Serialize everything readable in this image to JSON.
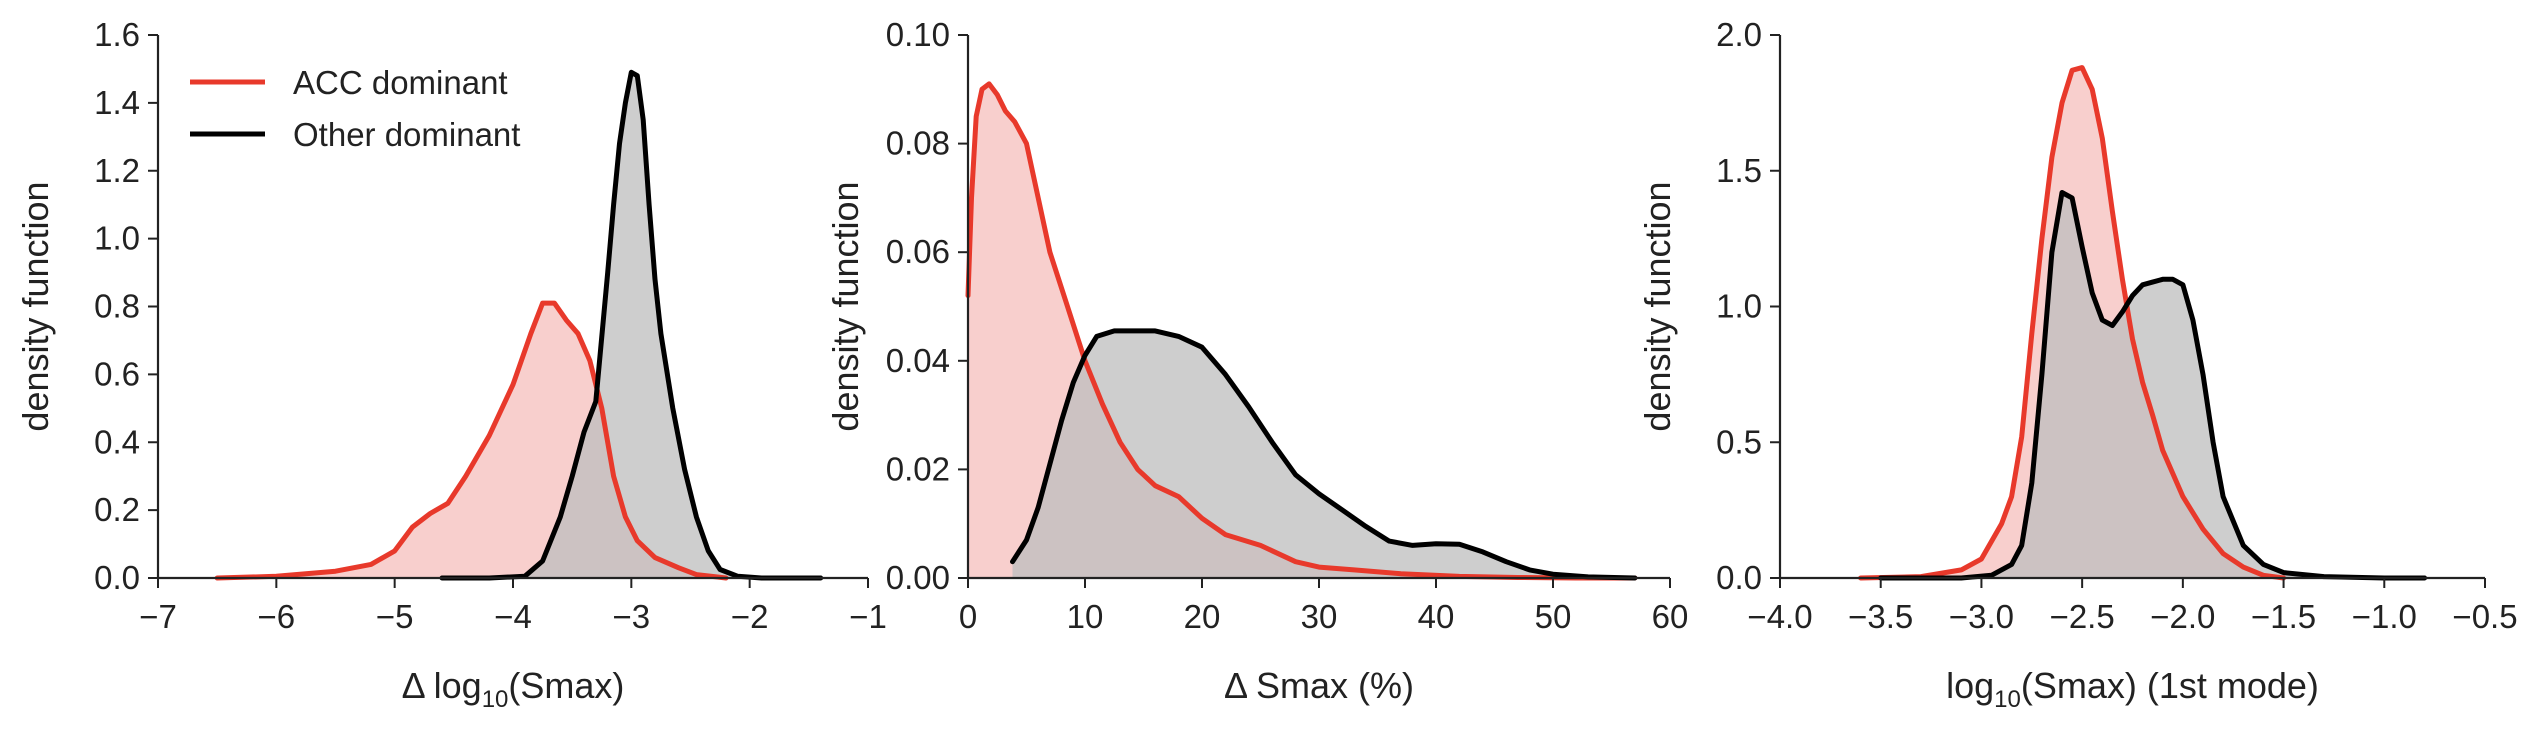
{
  "colors": {
    "acc_line": "#e8392b",
    "acc_fill": "#f7c7c4",
    "other_line": "#000000",
    "other_fill": "#bdbdbd",
    "overlap_fill": "#b79592"
  },
  "legend": {
    "placement": "top-left of first panel",
    "entries": [
      {
        "name": "ACC dominant",
        "color": "#e8392b"
      },
      {
        "name": "Other dominant",
        "color": "#000000"
      }
    ]
  },
  "chart_data": [
    {
      "type": "area",
      "xlabel": "Δ log10(Smax)",
      "ylabel": "density function",
      "xlim": [
        -7,
        -1
      ],
      "ylim": [
        0,
        1.6
      ],
      "xticks": [
        -7,
        -6,
        -5,
        -4,
        -3,
        -2,
        -1
      ],
      "xtick_labels": [
        "−7",
        "−6",
        "−5",
        "−4",
        "−3",
        "−2",
        "−1"
      ],
      "yticks": [
        0,
        0.2,
        0.4,
        0.6,
        0.8,
        1.0,
        1.2,
        1.4,
        1.6
      ],
      "ytick_labels": [
        "0.0",
        "0.2",
        "0.4",
        "0.6",
        "0.8",
        "1.0",
        "1.2",
        "1.4",
        "1.6"
      ],
      "grid": false,
      "series": [
        {
          "name": "ACC dominant",
          "x": [
            -6.5,
            -6.0,
            -5.5,
            -5.2,
            -5.0,
            -4.85,
            -4.7,
            -4.55,
            -4.4,
            -4.2,
            -4.0,
            -3.85,
            -3.75,
            -3.65,
            -3.55,
            -3.45,
            -3.35,
            -3.25,
            -3.15,
            -3.05,
            -2.95,
            -2.8,
            -2.6,
            -2.45,
            -2.3,
            -2.2
          ],
          "y": [
            0.0,
            0.005,
            0.02,
            0.04,
            0.08,
            0.15,
            0.19,
            0.22,
            0.3,
            0.42,
            0.57,
            0.72,
            0.81,
            0.81,
            0.76,
            0.72,
            0.64,
            0.5,
            0.3,
            0.18,
            0.11,
            0.06,
            0.03,
            0.01,
            0.004,
            0.0
          ]
        },
        {
          "name": "Other dominant",
          "x": [
            -4.6,
            -4.2,
            -3.9,
            -3.75,
            -3.6,
            -3.5,
            -3.4,
            -3.3,
            -3.2,
            -3.15,
            -3.1,
            -3.05,
            -3.0,
            -2.95,
            -2.9,
            -2.85,
            -2.8,
            -2.75,
            -2.65,
            -2.55,
            -2.45,
            -2.35,
            -2.25,
            -2.1,
            -1.9,
            -1.6,
            -1.4
          ],
          "y": [
            0.0,
            0.0,
            0.005,
            0.05,
            0.18,
            0.3,
            0.43,
            0.52,
            0.9,
            1.1,
            1.28,
            1.4,
            1.49,
            1.48,
            1.35,
            1.1,
            0.88,
            0.72,
            0.5,
            0.32,
            0.18,
            0.08,
            0.025,
            0.005,
            0.0,
            0.0,
            0.0
          ]
        }
      ]
    },
    {
      "type": "area",
      "xlabel": "Δ Smax (%)",
      "ylabel": "density function",
      "xlim": [
        0,
        60
      ],
      "ylim": [
        0,
        0.1
      ],
      "xticks": [
        0,
        10,
        20,
        30,
        40,
        50,
        60
      ],
      "xtick_labels": [
        "0",
        "10",
        "20",
        "30",
        "40",
        "50",
        "60"
      ],
      "yticks": [
        0,
        0.02,
        0.04,
        0.06,
        0.08,
        0.1
      ],
      "ytick_labels": [
        "0.00",
        "0.02",
        "0.04",
        "0.06",
        "0.08",
        "0.10"
      ],
      "grid": false,
      "series": [
        {
          "name": "ACC dominant",
          "x": [
            0,
            0.3,
            0.7,
            1.2,
            1.8,
            2.5,
            3.2,
            4.0,
            5.0,
            6.0,
            7.0,
            8.5,
            10.0,
            11.5,
            13.0,
            14.5,
            16.0,
            18.0,
            20.0,
            22.0,
            25.0,
            28.0,
            30.0,
            33.0,
            37.0,
            42.0,
            47.0,
            52.0,
            57.0
          ],
          "y": [
            0.052,
            0.07,
            0.085,
            0.09,
            0.091,
            0.089,
            0.086,
            0.084,
            0.08,
            0.07,
            0.06,
            0.05,
            0.04,
            0.032,
            0.025,
            0.02,
            0.017,
            0.015,
            0.011,
            0.008,
            0.006,
            0.003,
            0.002,
            0.0015,
            0.0008,
            0.0003,
            0.0001,
            0.0,
            0.0
          ]
        },
        {
          "name": "Other dominant",
          "x": [
            3.8,
            5.0,
            6.0,
            7.0,
            8.0,
            9.0,
            10.0,
            11.0,
            12.5,
            14.0,
            16.0,
            18.0,
            20.0,
            22.0,
            24.0,
            26.0,
            28.0,
            30.0,
            32.0,
            34.0,
            36.0,
            38.0,
            40.0,
            42.0,
            44.0,
            46.0,
            48.0,
            50.0,
            53.0,
            57.0
          ],
          "y": [
            0.003,
            0.007,
            0.013,
            0.021,
            0.029,
            0.036,
            0.041,
            0.0445,
            0.0455,
            0.0455,
            0.0455,
            0.0445,
            0.0425,
            0.0375,
            0.0315,
            0.025,
            0.019,
            0.0155,
            0.0125,
            0.0095,
            0.0068,
            0.006,
            0.0063,
            0.0062,
            0.0048,
            0.003,
            0.0015,
            0.0007,
            0.0002,
            0.0
          ]
        }
      ]
    },
    {
      "type": "area",
      "xlabel": "log10(Smax) (1st mode)",
      "ylabel": "density function",
      "xlim": [
        -4.0,
        -0.5
      ],
      "ylim": [
        0,
        2.0
      ],
      "xticks": [
        -4.0,
        -3.5,
        -3.0,
        -2.5,
        -2.0,
        -1.5,
        -1.0,
        -0.5
      ],
      "xtick_labels": [
        "−4.0",
        "−3.5",
        "−3.0",
        "−2.5",
        "−2.0",
        "−1.5",
        "−1.0",
        "−0.5"
      ],
      "yticks": [
        0,
        0.5,
        1.0,
        1.5,
        2.0
      ],
      "ytick_labels": [
        "0.0",
        "0.5",
        "1.0",
        "1.5",
        "2.0"
      ],
      "grid": false,
      "series": [
        {
          "name": "ACC dominant",
          "x": [
            -3.6,
            -3.3,
            -3.1,
            -3.0,
            -2.9,
            -2.85,
            -2.8,
            -2.75,
            -2.7,
            -2.65,
            -2.6,
            -2.55,
            -2.5,
            -2.45,
            -2.4,
            -2.35,
            -2.3,
            -2.25,
            -2.2,
            -2.15,
            -2.1,
            -2.0,
            -1.9,
            -1.8,
            -1.7,
            -1.6,
            -1.5
          ],
          "y": [
            0.0,
            0.005,
            0.03,
            0.07,
            0.2,
            0.3,
            0.52,
            0.9,
            1.25,
            1.55,
            1.75,
            1.87,
            1.88,
            1.8,
            1.62,
            1.35,
            1.1,
            0.88,
            0.72,
            0.6,
            0.47,
            0.3,
            0.18,
            0.09,
            0.04,
            0.01,
            0.0
          ]
        },
        {
          "name": "Other dominant",
          "x": [
            -3.5,
            -3.1,
            -2.95,
            -2.85,
            -2.8,
            -2.75,
            -2.7,
            -2.65,
            -2.6,
            -2.55,
            -2.5,
            -2.45,
            -2.4,
            -2.35,
            -2.3,
            -2.25,
            -2.2,
            -2.15,
            -2.1,
            -2.05,
            -2.0,
            -1.95,
            -1.9,
            -1.85,
            -1.8,
            -1.7,
            -1.6,
            -1.5,
            -1.3,
            -1.0,
            -0.8
          ],
          "y": [
            0.0,
            0.0,
            0.01,
            0.05,
            0.12,
            0.35,
            0.75,
            1.2,
            1.42,
            1.4,
            1.22,
            1.05,
            0.95,
            0.93,
            0.98,
            1.04,
            1.08,
            1.09,
            1.1,
            1.1,
            1.08,
            0.95,
            0.75,
            0.5,
            0.3,
            0.12,
            0.05,
            0.02,
            0.005,
            0.0,
            0.0
          ]
        }
      ]
    }
  ]
}
